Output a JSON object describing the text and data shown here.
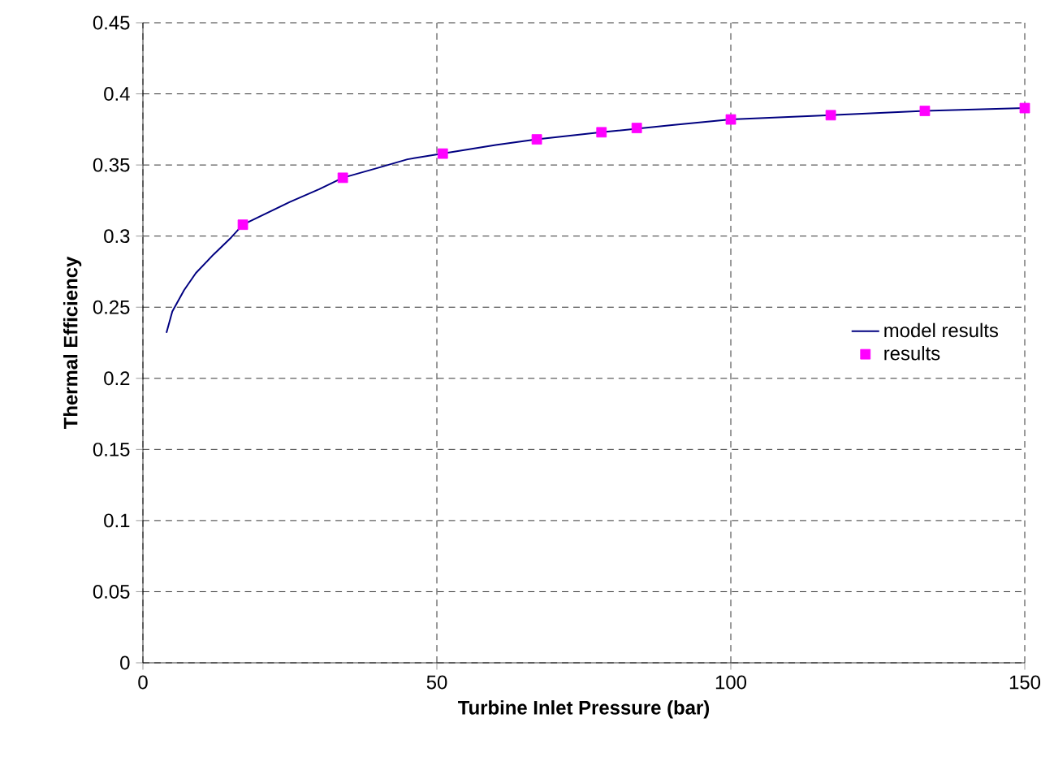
{
  "chart_data": {
    "type": "line",
    "xlabel": "Turbine Inlet Pressure (bar)",
    "ylabel": "Thermal Efficiency",
    "xlim": [
      0,
      150
    ],
    "xticks": [
      0,
      50,
      100,
      150
    ],
    "ylim": [
      0,
      0.45
    ],
    "yticks": [
      0,
      0.05,
      0.1,
      0.15,
      0.2,
      0.25,
      0.3,
      0.35,
      0.4,
      0.45
    ],
    "grid": true,
    "legend": "right",
    "series": [
      {
        "name": "model results",
        "color": "#000080",
        "marker": "none",
        "x": [
          4,
          5,
          7,
          9,
          12,
          15,
          17,
          20,
          25,
          30,
          34,
          40,
          45,
          51,
          60,
          67,
          78,
          90,
          100,
          117,
          133,
          150
        ],
        "values": [
          0.232,
          0.247,
          0.262,
          0.274,
          0.287,
          0.299,
          0.308,
          0.314,
          0.324,
          0.333,
          0.341,
          0.348,
          0.354,
          0.358,
          0.364,
          0.368,
          0.373,
          0.378,
          0.382,
          0.385,
          0.388,
          0.39
        ]
      },
      {
        "name": "results",
        "type": "scatter",
        "color": "#ff00ff",
        "marker": "square",
        "x": [
          17,
          34,
          51,
          67,
          78,
          84,
          100,
          117,
          133,
          150
        ],
        "values": [
          0.308,
          0.341,
          0.358,
          0.368,
          0.373,
          0.376,
          0.382,
          0.385,
          0.388,
          0.39
        ]
      }
    ]
  }
}
